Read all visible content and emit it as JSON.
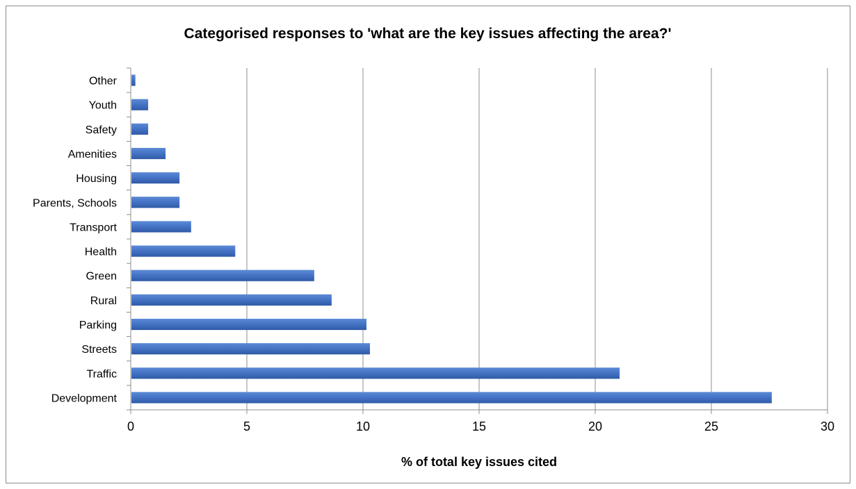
{
  "chart_data": {
    "type": "bar",
    "orientation": "horizontal",
    "title": "Categorised responses to 'what are the key issues affecting the area?'",
    "xlabel": "% of total key issues cited",
    "ylabel": "",
    "xlim": [
      0,
      30
    ],
    "xticks": [
      0,
      5,
      10,
      15,
      20,
      25,
      30
    ],
    "grid": "vertical",
    "legend": "none",
    "bar_color": "#4472C4",
    "categories": [
      "Development",
      "Traffic",
      "Streets",
      "Parking",
      "Rural",
      "Green",
      "Health",
      "Transport",
      "Parents, Schools",
      "Housing",
      "Amenities",
      "Safety",
      "Youth",
      "Other"
    ],
    "values": [
      27.6,
      21.05,
      10.3,
      10.15,
      8.65,
      7.9,
      4.5,
      2.6,
      2.1,
      2.1,
      1.5,
      0.75,
      0.75,
      0.2
    ]
  }
}
